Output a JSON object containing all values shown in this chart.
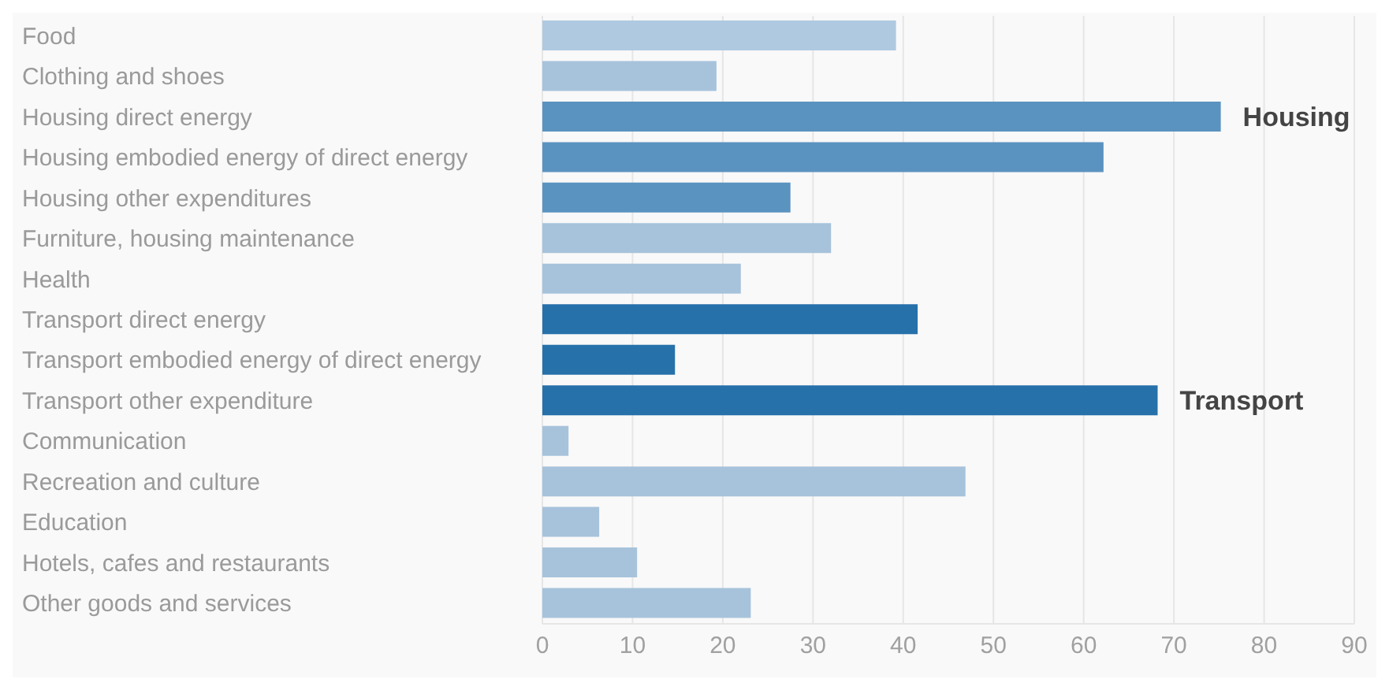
{
  "chart_data": {
    "type": "bar",
    "orientation": "horizontal",
    "categories": [
      "Food",
      "Clothing and shoes",
      "Housing direct energy",
      "Housing embodied energy of direct energy",
      "Housing other expenditures",
      "Furniture, housing maintenance",
      "Health",
      "Transport direct energy",
      "Transport embodied energy of direct energy",
      "Transport other expenditure",
      "Communication",
      "Recreation and culture",
      "Education",
      "Hotels, cafes and restaurants",
      "Other goods and services"
    ],
    "values": [
      39.2,
      19.3,
      75.2,
      62.2,
      27.5,
      32.0,
      22.0,
      41.6,
      14.7,
      68.2,
      2.9,
      46.9,
      6.3,
      10.5,
      23.1
    ],
    "colors": [
      "#afc9e0",
      "#a7c3db",
      "#5b93c0",
      "#5b93c0",
      "#5b93c0",
      "#a7c3db",
      "#a7c3db",
      "#2771aa",
      "#2771aa",
      "#2771aa",
      "#a7c3db",
      "#a7c3db",
      "#a7c3db",
      "#a7c3db",
      "#a7c3db"
    ],
    "xlim": [
      0,
      90
    ],
    "xticks": [
      0,
      10,
      20,
      30,
      40,
      50,
      60,
      70,
      80,
      90
    ],
    "grid": "x",
    "annotations": [
      {
        "text": "Housing",
        "x": 75.2,
        "y": "Housing direct energy"
      },
      {
        "text": "Transport",
        "x": 68.2,
        "y": "Transport other expenditure"
      }
    ]
  }
}
